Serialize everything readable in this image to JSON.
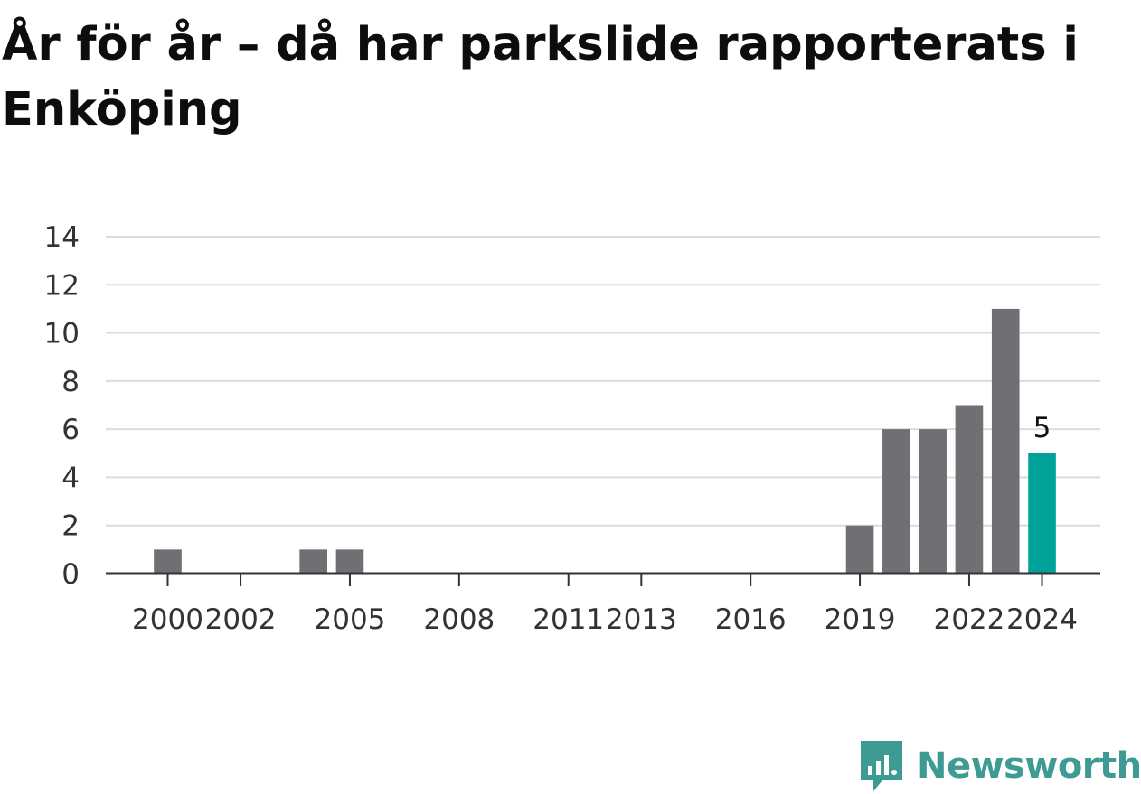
{
  "chart_data": {
    "type": "bar",
    "title": "År för år – då har parkslide rapporterats i Enköping",
    "xlabel": "",
    "ylabel": "",
    "ylim": [
      0,
      14
    ],
    "yticks": [
      "0",
      "2",
      "4",
      "6",
      "8",
      "10",
      "12",
      "14"
    ],
    "x_tick_labels": [
      "2000",
      "2002",
      "2005",
      "2008",
      "2011",
      "2013",
      "2016",
      "2019",
      "2022",
      "2024"
    ],
    "grid": true,
    "x": [
      2000,
      2004,
      2005,
      2019,
      2020,
      2021,
      2022,
      2023,
      2024
    ],
    "values": [
      1,
      1,
      1,
      2,
      6,
      6,
      7,
      11,
      5
    ],
    "highlight": {
      "x": 2024,
      "value": 5,
      "label": "5"
    },
    "colors": {
      "bar": "#707074",
      "highlight": "#00a29a",
      "grid": "#dcdcdc",
      "axis": "#333333"
    }
  },
  "brand": {
    "name": "Newsworthy",
    "icon": "newsworthy-logo-icon",
    "color": "#3d9b94"
  }
}
